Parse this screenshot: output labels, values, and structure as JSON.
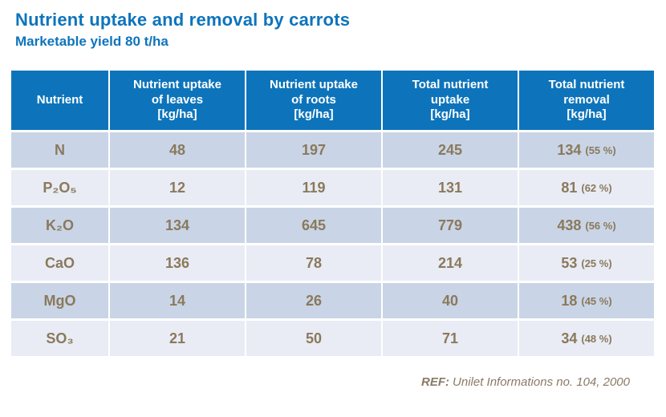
{
  "title": "Nutrient uptake and removal by carrots",
  "subtitle": "Marketable yield 80 t/ha",
  "colors": {
    "accent_blue": "#0e74bc",
    "header_bg": "#0d74bb",
    "row_dark": "#c9d5e6",
    "row_light": "#e9ecf4",
    "data_text": "#8a795c",
    "footer_text": "#8a7a66"
  },
  "table": {
    "headers": [
      "Nutrient",
      "Nutrient uptake\nof leaves\n[kg/ha]",
      "Nutrient uptake\nof roots\n[kg/ha]",
      "Total nutrient\nuptake\n[kg/ha]",
      "Total nutrient\nremoval\n[kg/ha]"
    ],
    "rows": [
      {
        "nutrient": "N",
        "leaves": "48",
        "roots": "197",
        "total": "245",
        "removal": "134",
        "removal_pct": "(55 %)"
      },
      {
        "nutrient": "P₂O₅",
        "leaves": "12",
        "roots": "119",
        "total": "131",
        "removal": "81",
        "removal_pct": "(62 %)"
      },
      {
        "nutrient": "K₂O",
        "leaves": "134",
        "roots": "645",
        "total": "779",
        "removal": "438",
        "removal_pct": "(56 %)"
      },
      {
        "nutrient": "CaO",
        "leaves": "136",
        "roots": "78",
        "total": "214",
        "removal": "53",
        "removal_pct": "(25 %)"
      },
      {
        "nutrient": "MgO",
        "leaves": "14",
        "roots": "26",
        "total": "40",
        "removal": "18",
        "removal_pct": "(45 %)"
      },
      {
        "nutrient": "SO₃",
        "leaves": "21",
        "roots": "50",
        "total": "71",
        "removal": "34",
        "removal_pct": "(48 %)"
      }
    ]
  },
  "footer": {
    "ref_label": "REF:",
    "ref_text": "Unilet Informations no. 104, 2000"
  }
}
